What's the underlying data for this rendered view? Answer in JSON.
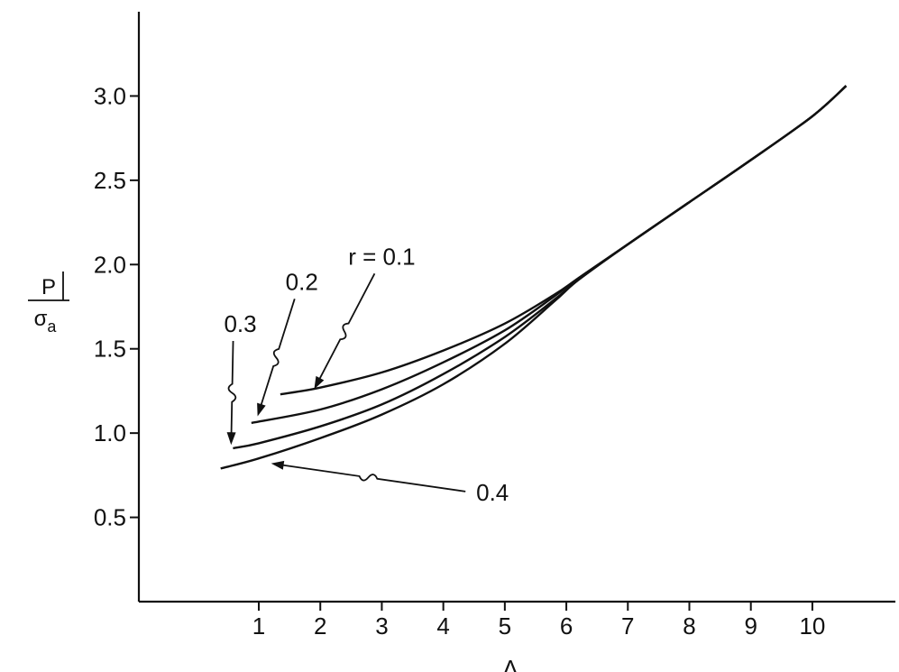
{
  "chart_data": {
    "type": "line",
    "title": "",
    "xlabel": "Λ",
    "ylabel_numerator": "P",
    "ylabel_denominator": "σa",
    "ylabel_denominator_main": "σ",
    "ylabel_denominator_sub": "a",
    "xlim": [
      -0.95,
      11.35
    ],
    "ylim": [
      0.0,
      3.5
    ],
    "x_ticks": [
      1,
      2,
      3,
      4,
      5,
      6,
      7,
      8,
      9,
      10
    ],
    "x_tick_labels": [
      "1",
      "2",
      "3",
      "4",
      "5",
      "6",
      "7",
      "8",
      "9",
      "10"
    ],
    "y_ticks": [
      0.5,
      1.0,
      1.5,
      2.0,
      2.5,
      3.0
    ],
    "y_tick_labels": [
      "0.5",
      "1.0",
      "1.5",
      "2.0",
      "2.5",
      "3.0"
    ],
    "grid": false,
    "legend": "none",
    "series": [
      {
        "name": "r = 0.1",
        "x": [
          1.35,
          2.0,
          3.0,
          4.0,
          5.0,
          5.8,
          6.2,
          7.0,
          8.0,
          9.0,
          10.0,
          10.55
        ],
        "y": [
          1.23,
          1.27,
          1.36,
          1.49,
          1.65,
          1.82,
          1.92,
          2.12,
          2.37,
          2.62,
          2.88,
          3.06
        ]
      },
      {
        "name": "0.2",
        "x": [
          0.88,
          2.0,
          3.0,
          4.0,
          5.0,
          5.8,
          6.2,
          7.0,
          8.0,
          9.0,
          10.0,
          10.55
        ],
        "y": [
          1.06,
          1.14,
          1.26,
          1.42,
          1.61,
          1.81,
          1.92,
          2.12,
          2.37,
          2.62,
          2.88,
          3.06
        ]
      },
      {
        "name": "0.3",
        "x": [
          0.58,
          1.0,
          2.0,
          3.0,
          4.0,
          5.0,
          5.8,
          6.2,
          7.0,
          8.0,
          9.0,
          10.0,
          10.55
        ],
        "y": [
          0.91,
          0.94,
          1.04,
          1.17,
          1.35,
          1.57,
          1.79,
          1.91,
          2.12,
          2.37,
          2.62,
          2.88,
          3.06
        ]
      },
      {
        "name": "0.4",
        "x": [
          0.38,
          1.0,
          2.0,
          3.0,
          4.0,
          5.0,
          5.8,
          6.2,
          7.0,
          8.0,
          9.0,
          10.0,
          10.55
        ],
        "y": [
          0.79,
          0.85,
          0.97,
          1.11,
          1.29,
          1.53,
          1.78,
          1.91,
          2.12,
          2.37,
          2.62,
          2.88,
          3.06
        ]
      }
    ],
    "annotations": [
      {
        "text": "r = 0.1",
        "x": 3.0,
        "y": 2.0,
        "arrow_to": [
          1.9,
          1.26
        ]
      },
      {
        "text": "0.2",
        "x": 1.7,
        "y": 1.85,
        "arrow_to": [
          0.98,
          1.1
        ]
      },
      {
        "text": "0.3",
        "x": 0.7,
        "y": 1.6,
        "arrow_to": [
          0.55,
          0.93
        ]
      },
      {
        "text": "0.4",
        "x": 4.8,
        "y": 0.6,
        "arrow_to": [
          1.2,
          0.82
        ]
      }
    ]
  }
}
